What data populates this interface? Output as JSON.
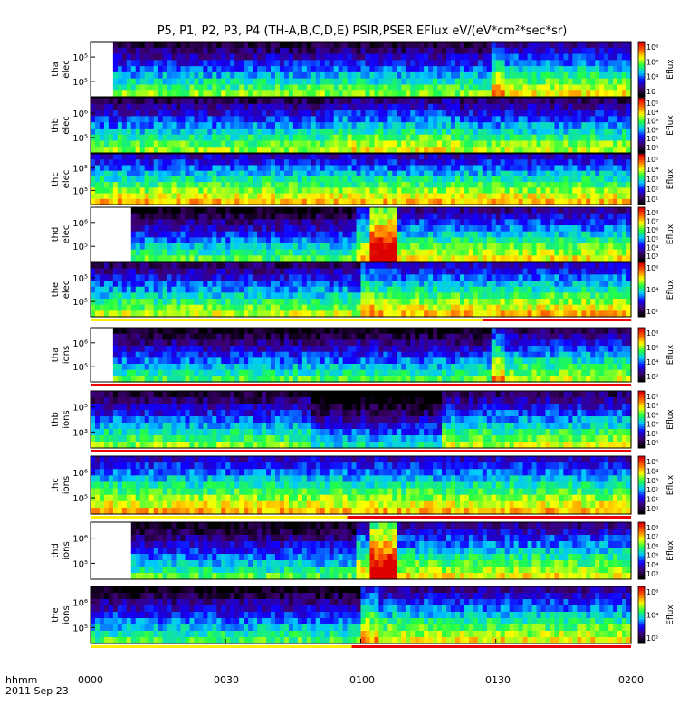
{
  "title": "P5, P1, P2, P3, P4 (TH-A,B,C,D,E) PSIR,PSER EFlux eV/(eV*cm²*sec*sr)",
  "x_axis": {
    "tick_labels": [
      "0000",
      "0030",
      "0100",
      "0130",
      "0200"
    ],
    "corner_label": "hhmm",
    "date_label": "2011 Sep 23"
  },
  "colors": {
    "flag_yellow": "#ffee00",
    "flag_red": "#ee0000",
    "colormap": [
      "#000000",
      "#3d0070",
      "#1100ff",
      "#00c8ff",
      "#22ff44",
      "#ffff00",
      "#ff6600",
      "#dd0000"
    ]
  },
  "chart_data": {
    "type": "heatmap",
    "x": {
      "start": "0000",
      "end": "0200",
      "unit": "hhmm"
    },
    "colorbar_label": "Eflux",
    "panels": [
      {
        "probe": "tha",
        "species": "elec",
        "ylabel": "tha elec",
        "yticks": [
          "10⁵",
          "10⁵"
        ],
        "colorbar_ticks": [
          "10⁶",
          "10⁶",
          "10⁴",
          "10⁲"
        ],
        "data_start_min": 5,
        "segments": [
          {
            "end_min": 89,
            "level": 0.35
          },
          {
            "end_min": 92,
            "level": 0.55
          },
          {
            "end_min": 120,
            "level": 0.45
          }
        ]
      },
      {
        "probe": "thb",
        "species": "elec",
        "ylabel": "thb elec",
        "yticks": [
          "10⁶",
          "10⁵"
        ],
        "colorbar_ticks": [
          "10⁵",
          "10⁴",
          "10³",
          "10²",
          "10¹",
          "10⁰"
        ],
        "data_start_min": 0,
        "segments": [
          {
            "end_min": 54,
            "level": 0.38
          },
          {
            "end_min": 82,
            "level": 0.45
          },
          {
            "end_min": 120,
            "level": 0.4
          }
        ]
      },
      {
        "probe": "thc",
        "species": "elec",
        "ylabel": "thc elec",
        "yticks": [
          "10⁵",
          "10⁵"
        ],
        "colorbar_ticks": [
          "10⁵",
          "10⁴",
          "10³",
          "10²",
          "10¹"
        ],
        "data_start_min": 0,
        "segments": [
          {
            "end_min": 120,
            "level": 0.5
          }
        ]
      },
      {
        "probe": "thd",
        "species": "elec",
        "ylabel": "thd elec",
        "yticks": [
          "10⁶",
          "10⁵"
        ],
        "colorbar_ticks": [
          "10⁸",
          "10⁷",
          "10⁶",
          "10⁵",
          "10⁴",
          "10³"
        ],
        "data_start_min": 9,
        "segments": [
          {
            "end_min": 59,
            "level": 0.3
          },
          {
            "end_min": 62,
            "level": 0.5
          },
          {
            "end_min": 68,
            "level": 0.85
          },
          {
            "end_min": 120,
            "level": 0.45
          }
        ]
      },
      {
        "probe": "the",
        "species": "elec",
        "ylabel": "the elec",
        "yticks": [
          "10⁵",
          "10⁵"
        ],
        "colorbar_ticks": [
          "10⁶",
          "10⁴",
          "10²"
        ],
        "data_start_min": 0,
        "segments": [
          {
            "end_min": 60,
            "level": 0.4
          },
          {
            "end_min": 64,
            "level": 0.55
          },
          {
            "end_min": 120,
            "level": 0.5
          }
        ],
        "flag": {
          "red_from_min": 87
        }
      },
      {
        "probe": "tha",
        "species": "ions",
        "ylabel": "tha ions",
        "yticks": [
          "10⁶",
          "10⁵"
        ],
        "colorbar_ticks": [
          "10⁸",
          "10⁶",
          "10⁴",
          "10²"
        ],
        "data_start_min": 5,
        "segments": [
          {
            "end_min": 89,
            "level": 0.3
          },
          {
            "end_min": 92,
            "level": 0.55
          },
          {
            "end_min": 120,
            "level": 0.4
          }
        ],
        "flag": {
          "red_from_min": 0
        }
      },
      {
        "probe": "thb",
        "species": "ions",
        "ylabel": "thb ions",
        "yticks": [
          "10⁵",
          "10³"
        ],
        "colorbar_ticks": [
          "10⁵",
          "10⁴",
          "10³",
          "10²",
          "10¹",
          "10⁰"
        ],
        "data_start_min": 0,
        "segments": [
          {
            "end_min": 49,
            "level": 0.35
          },
          {
            "end_min": 78,
            "level": 0.2
          },
          {
            "end_min": 120,
            "level": 0.4
          }
        ],
        "flag": {
          "red_from_min": 0
        }
      },
      {
        "probe": "thc",
        "species": "ions",
        "ylabel": "thc ions",
        "yticks": [
          "10⁶",
          "10⁵"
        ],
        "colorbar_ticks": [
          "10⁵",
          "10⁴",
          "10³",
          "10²",
          "10¹",
          "10⁰"
        ],
        "data_start_min": 0,
        "segments": [
          {
            "end_min": 120,
            "level": 0.5
          }
        ],
        "flag": {
          "red_from_min": 57
        }
      },
      {
        "probe": "thd",
        "species": "ions",
        "ylabel": "thd ions",
        "yticks": [
          "10⁶",
          "10⁵"
        ],
        "colorbar_ticks": [
          "10⁸",
          "10⁷",
          "10⁶",
          "10⁵",
          "10⁴",
          "10³"
        ],
        "data_start_min": 9,
        "segments": [
          {
            "end_min": 59,
            "level": 0.3
          },
          {
            "end_min": 62,
            "level": 0.5
          },
          {
            "end_min": 68,
            "level": 0.85
          },
          {
            "end_min": 120,
            "level": 0.45
          }
        ]
      },
      {
        "probe": "the",
        "species": "ions",
        "ylabel": "the ions",
        "yticks": [
          "10⁶",
          "10⁵"
        ],
        "colorbar_ticks": [
          "10⁶",
          "10⁴",
          "10²"
        ],
        "data_start_min": 0,
        "segments": [
          {
            "end_min": 60,
            "level": 0.3
          },
          {
            "end_min": 64,
            "level": 0.55
          },
          {
            "end_min": 120,
            "level": 0.45
          }
        ],
        "flag": {
          "red_from_min": 58
        }
      }
    ]
  }
}
